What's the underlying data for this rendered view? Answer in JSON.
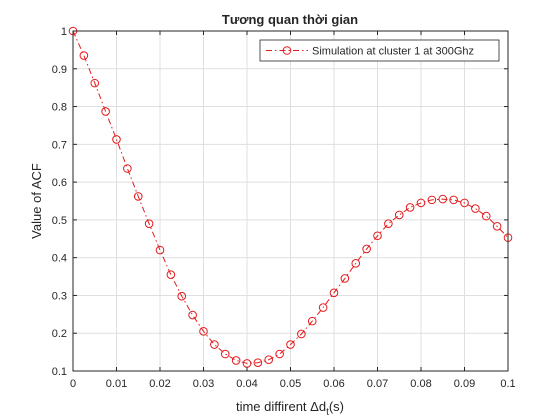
{
  "chart_data": {
    "type": "line",
    "title": "Tương quan thời gian",
    "xlabel": "time diffirent Δd",
    "xlabel_sub": "t",
    "xlabel_tail": "(s)",
    "ylabel": "Value of ACF",
    "xlim": [
      0,
      0.1
    ],
    "ylim": [
      0.1,
      1
    ],
    "x_ticks": [
      0,
      0.01,
      0.02,
      0.03,
      0.04,
      0.05,
      0.06,
      0.07,
      0.08,
      0.09,
      0.1
    ],
    "x_tick_labels": [
      "0",
      "0.01",
      "0.02",
      "0.03",
      "0.04",
      "0.05",
      "0.06",
      "0.07",
      "0.08",
      "0.09",
      "0.1"
    ],
    "y_ticks": [
      0.1,
      0.2,
      0.3,
      0.4,
      0.5,
      0.6,
      0.7,
      0.8,
      0.9,
      1
    ],
    "y_tick_labels": [
      "0.1",
      "0.2",
      "0.3",
      "0.4",
      "0.5",
      "0.6",
      "0.7",
      "0.8",
      "0.9",
      "1"
    ],
    "grid": true,
    "legend_position": "top-right",
    "series": [
      {
        "name": "Simulation at cluster 1 at 300Ghz",
        "color": "#e41a1c",
        "line_style": "dash-dot",
        "marker": "circle",
        "x": [
          0,
          0.0025,
          0.005,
          0.0075,
          0.01,
          0.0125,
          0.015,
          0.0175,
          0.02,
          0.0225,
          0.025,
          0.0275,
          0.03,
          0.0325,
          0.035,
          0.0375,
          0.04,
          0.0425,
          0.045,
          0.0475,
          0.05,
          0.0525,
          0.055,
          0.0575,
          0.06,
          0.0625,
          0.065,
          0.0675,
          0.07,
          0.0725,
          0.075,
          0.0775,
          0.08,
          0.0825,
          0.085,
          0.0875,
          0.09,
          0.0925,
          0.095,
          0.0975,
          0.1
        ],
        "y": [
          1.0,
          0.935,
          0.862,
          0.787,
          0.713,
          0.636,
          0.562,
          0.49,
          0.42,
          0.355,
          0.298,
          0.248,
          0.205,
          0.17,
          0.145,
          0.128,
          0.12,
          0.122,
          0.13,
          0.145,
          0.17,
          0.198,
          0.232,
          0.268,
          0.307,
          0.345,
          0.385,
          0.423,
          0.458,
          0.49,
          0.513,
          0.533,
          0.545,
          0.553,
          0.555,
          0.553,
          0.545,
          0.53,
          0.51,
          0.483,
          0.453
        ]
      }
    ]
  }
}
